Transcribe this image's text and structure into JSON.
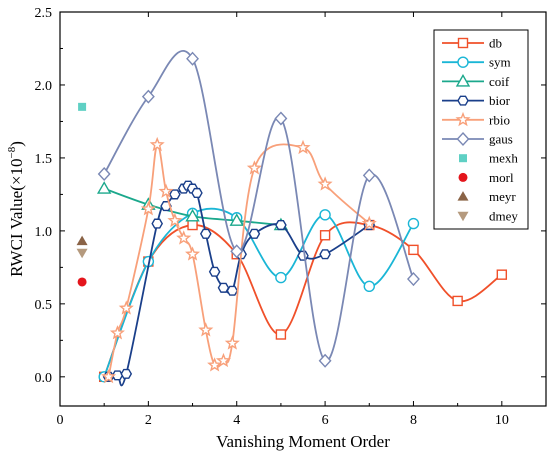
{
  "chart_data": {
    "type": "line",
    "xlabel": "Vanishing Moment Order",
    "ylabel": "RWCI Value",
    "ylabel_exponent": "(×10",
    "ylabel_sup": "−8",
    "ylabel_close": ")",
    "xlim": [
      0,
      11
    ],
    "ylim": [
      -0.2,
      2.5
    ],
    "xticks": [
      0,
      2,
      4,
      6,
      8,
      10
    ],
    "xtick_labels": [
      "0",
      "2",
      "4",
      "6",
      "8",
      "10"
    ],
    "yticks": [
      0.0,
      0.5,
      1.0,
      1.5,
      2.0,
      2.5
    ],
    "ytick_labels": [
      "0.0",
      "0.5",
      "1.0",
      "1.5",
      "2.0",
      "2.5"
    ],
    "legend_position": "top-right",
    "series": [
      {
        "name": "db",
        "color": "#f0502a",
        "marker": "square",
        "x": [
          1,
          2,
          3,
          4,
          5,
          6,
          7,
          8,
          9,
          10
        ],
        "y": [
          0.0,
          0.79,
          1.04,
          0.84,
          0.29,
          0.97,
          1.04,
          0.87,
          0.52,
          0.7
        ]
      },
      {
        "name": "sym",
        "color": "#1ab6d6",
        "marker": "circle",
        "x": [
          1,
          2,
          3,
          4,
          5,
          6,
          7,
          8
        ],
        "y": [
          0.0,
          0.79,
          1.12,
          1.09,
          0.68,
          1.11,
          0.62,
          1.05
        ]
      },
      {
        "name": "coif",
        "color": "#1ba88c",
        "marker": "triangle",
        "x": [
          1,
          2,
          3,
          4,
          5
        ],
        "y": [
          1.29,
          1.18,
          1.1,
          1.07,
          1.04
        ]
      },
      {
        "name": "bior",
        "color": "#1a3f8a",
        "marker": "hexagon",
        "x": [
          1.1,
          1.3,
          1.5,
          2.2,
          2.4,
          2.6,
          2.8,
          2.9,
          3.0,
          3.1,
          3.3,
          3.5,
          3.7,
          3.9,
          4.1,
          4.4,
          5.0,
          5.5,
          6.0,
          7.0
        ],
        "y": [
          0.0,
          0.01,
          0.02,
          1.05,
          1.17,
          1.25,
          1.29,
          1.31,
          1.29,
          1.26,
          0.98,
          0.72,
          0.61,
          0.59,
          0.84,
          0.98,
          1.04,
          0.83,
          0.84,
          1.04
        ]
      },
      {
        "name": "rbio",
        "color": "#f8a07a",
        "marker": "star",
        "x": [
          1.1,
          1.3,
          1.5,
          2.0,
          2.2,
          2.4,
          2.6,
          2.8,
          3.0,
          3.3,
          3.5,
          3.7,
          3.9,
          4.4,
          5.5,
          6.0,
          7.0
        ],
        "y": [
          0.0,
          0.3,
          0.47,
          1.15,
          1.59,
          1.27,
          1.07,
          0.95,
          0.84,
          0.32,
          0.08,
          0.11,
          0.23,
          1.43,
          1.57,
          1.32,
          1.05
        ]
      },
      {
        "name": "gaus",
        "color": "#7a88b4",
        "marker": "diamond",
        "x": [
          1,
          2,
          3,
          4,
          5,
          6,
          7,
          8
        ],
        "y": [
          1.39,
          1.92,
          2.18,
          0.86,
          1.77,
          0.11,
          1.38,
          0.67
        ]
      },
      {
        "name": "mexh",
        "color": "#5fd0c4",
        "marker": "square-filled",
        "x": [
          0.5
        ],
        "y": [
          1.85
        ]
      },
      {
        "name": "morl",
        "color": "#e4151c",
        "marker": "circle-filled",
        "x": [
          0.5
        ],
        "y": [
          0.65
        ]
      },
      {
        "name": "meyr",
        "color": "#8a6346",
        "marker": "triangle-filled",
        "x": [
          0.5
        ],
        "y": [
          0.93
        ]
      },
      {
        "name": "dmey",
        "color": "#b59a7e",
        "marker": "triangle-down-filled",
        "x": [
          0.5
        ],
        "y": [
          0.85
        ]
      }
    ]
  }
}
